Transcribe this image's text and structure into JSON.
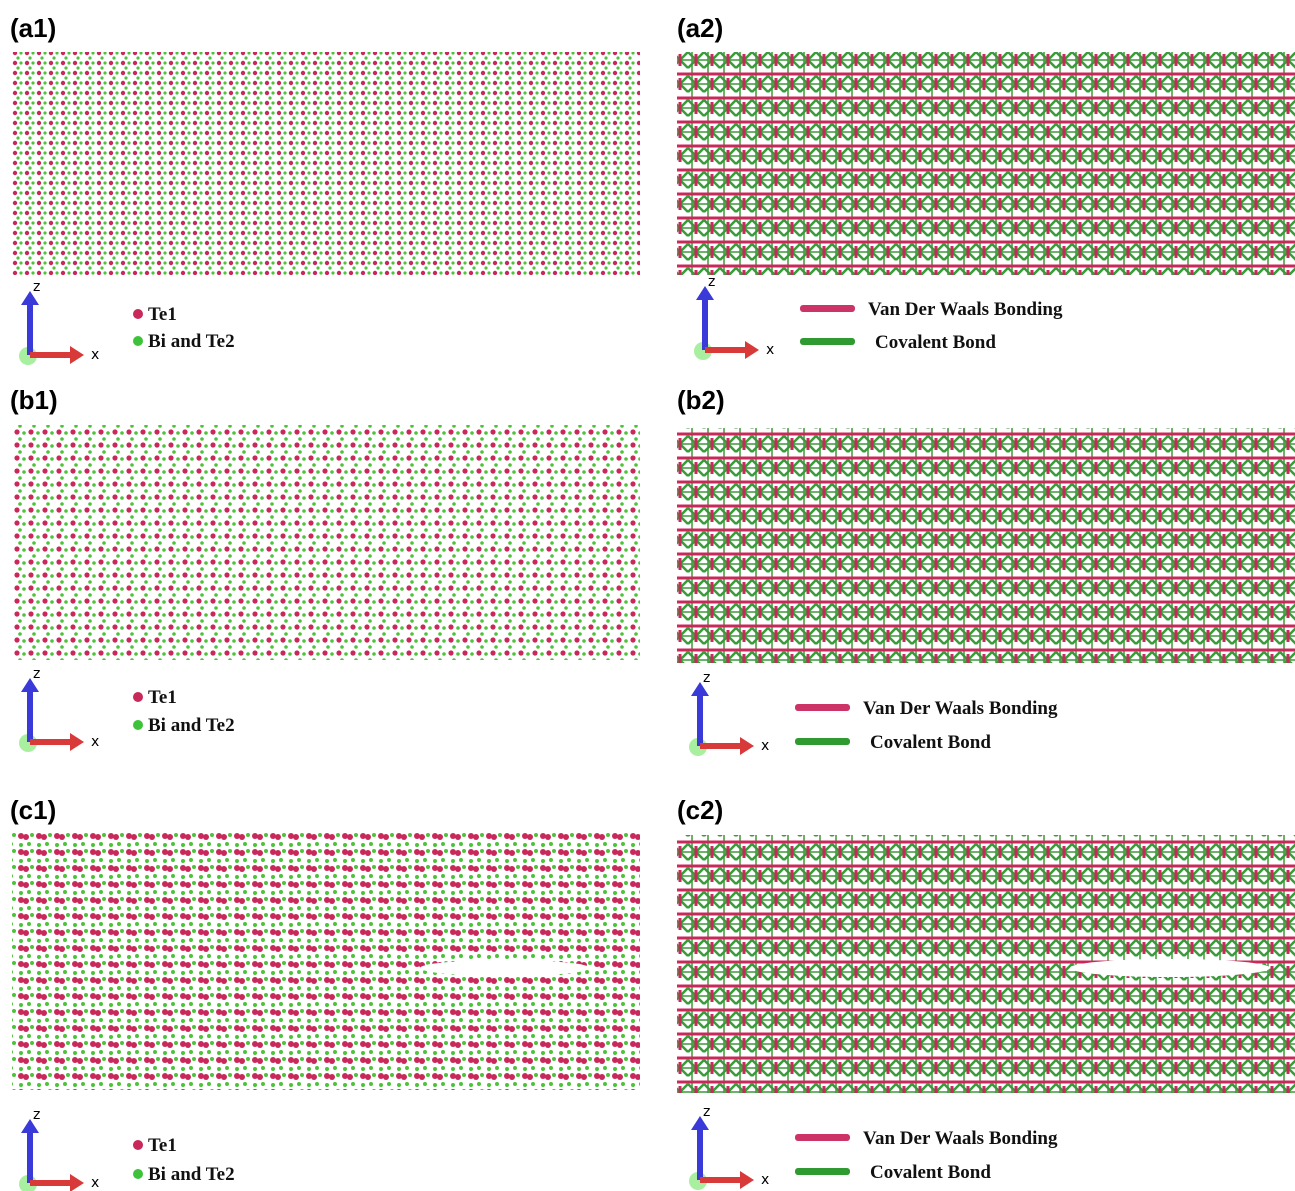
{
  "panels": [
    {
      "label": "(a1)",
      "axis_z": "z",
      "axis_x": "x",
      "legend": [
        "Te1",
        "Bi and Te2"
      ]
    },
    {
      "label": "(a2)",
      "axis_z": "z",
      "axis_x": "x",
      "legend": [
        "Van Der Waals Bonding",
        "Covalent Bond"
      ]
    },
    {
      "label": "(b1)",
      "axis_z": "z",
      "axis_x": "x",
      "legend": [
        "Te1",
        "Bi and Te2"
      ]
    },
    {
      "label": "(b2)",
      "axis_z": "z",
      "axis_x": "x",
      "legend": [
        "Van Der Waals Bonding",
        "Covalent Bond"
      ]
    },
    {
      "label": "(c1)",
      "axis_z": "z",
      "axis_x": "x",
      "legend": [
        "Te1",
        "Bi and Te2"
      ]
    },
    {
      "label": "(c2)",
      "axis_z": "z",
      "axis_x": "x",
      "legend": [
        "Van Der Waals Bonding",
        "Covalent Bond"
      ]
    }
  ]
}
